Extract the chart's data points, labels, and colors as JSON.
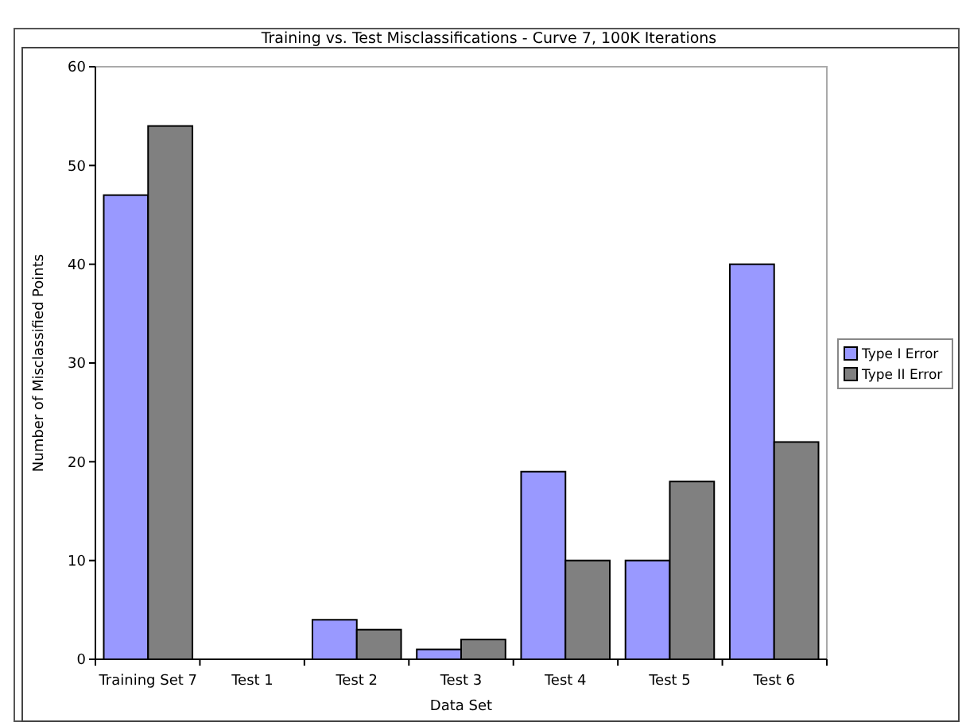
{
  "chart_data": {
    "type": "bar",
    "title": "Training vs. Test Misclassifications - Curve 7, 100K Iterations",
    "xlabel": "Data Set",
    "ylabel": "Number of Misclassified Points",
    "categories": [
      "Training Set 7",
      "Test 1",
      "Test 2",
      "Test 3",
      "Test 4",
      "Test 5",
      "Test 6"
    ],
    "series": [
      {
        "name": "Type I Error",
        "color": "#9999ff",
        "values": [
          47,
          0,
          4,
          1,
          19,
          10,
          40
        ]
      },
      {
        "name": "Type II Error",
        "color": "#808080",
        "values": [
          54,
          0,
          3,
          2,
          10,
          18,
          22
        ]
      }
    ],
    "ylim": [
      0,
      60
    ],
    "yticks": [
      0,
      10,
      20,
      30,
      40,
      50,
      60
    ],
    "grid": false,
    "legend": "right"
  }
}
